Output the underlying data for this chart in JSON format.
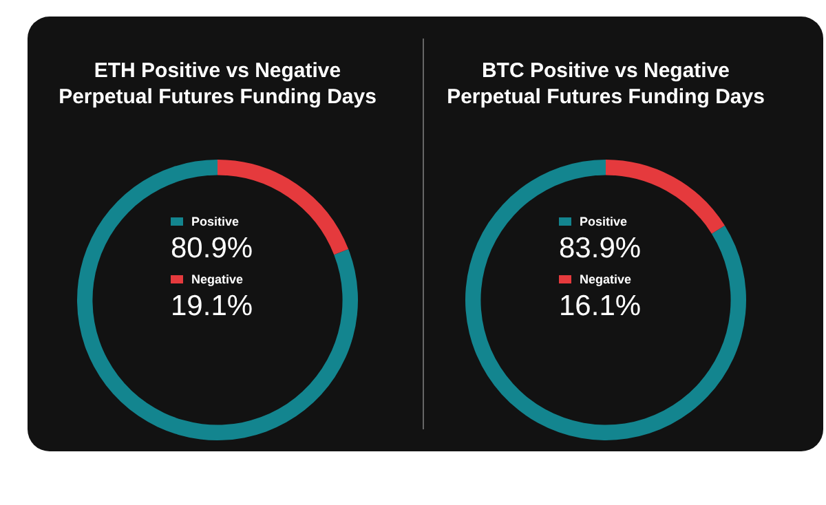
{
  "chart_data": [
    {
      "type": "donut",
      "title": "ETH Positive vs Negative Perpetual Futures Funding Days",
      "categories": [
        "Positive",
        "Negative"
      ],
      "values": [
        80.9,
        19.1
      ],
      "colors": [
        "#13858f",
        "#e53a3d"
      ],
      "value_labels": [
        "80.9%",
        "19.1%"
      ],
      "legend": "center"
    },
    {
      "type": "donut",
      "title": "BTC Positive vs Negative Perpetual Futures Funding Days",
      "categories": [
        "Positive",
        "Negative"
      ],
      "values": [
        83.9,
        16.1
      ],
      "colors": [
        "#13858f",
        "#e53a3d"
      ],
      "value_labels": [
        "83.9%",
        "16.1%"
      ],
      "legend": "center"
    }
  ]
}
